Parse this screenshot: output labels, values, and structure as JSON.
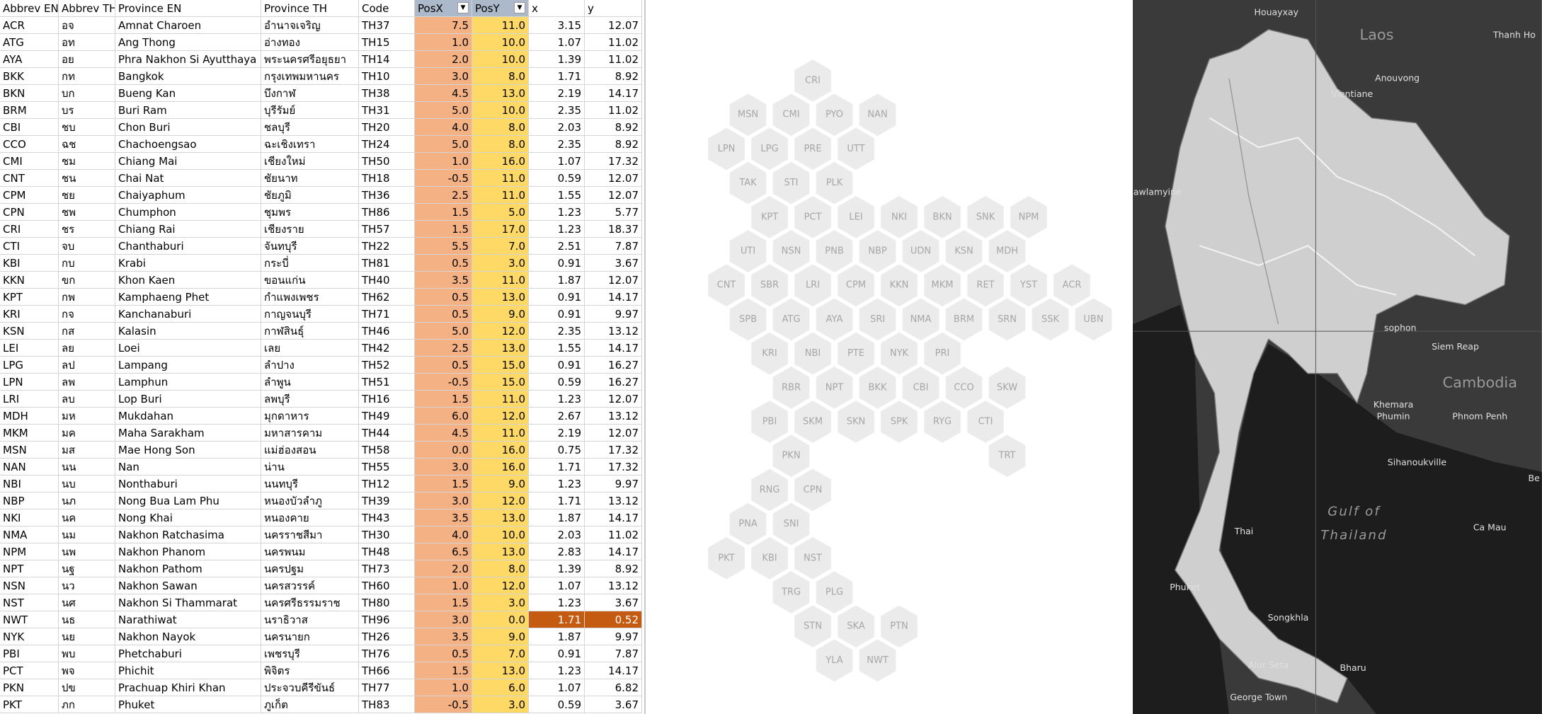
{
  "table": {
    "columns": [
      "Abbrev EN",
      "Abbrev TH",
      "Province EN",
      "Province TH",
      "Code",
      "PosX",
      "PosY",
      "x",
      "y"
    ],
    "rows": [
      [
        "ACR",
        "อจ",
        "Amnat Charoen",
        "อำนาจเจริญ",
        "TH37",
        "7.5",
        "11.0",
        "3.15",
        "12.07"
      ],
      [
        "ATG",
        "อท",
        "Ang Thong",
        "อ่างทอง",
        "TH15",
        "1.0",
        "10.0",
        "1.07",
        "11.02"
      ],
      [
        "AYA",
        "อย",
        "Phra Nakhon Si Ayutthaya",
        "พระนครศรีอยุธยา",
        "TH14",
        "2.0",
        "10.0",
        "1.39",
        "11.02"
      ],
      [
        "BKK",
        "กท",
        "Bangkok",
        "กรุงเทพมหานคร",
        "TH10",
        "3.0",
        "8.0",
        "1.71",
        "8.92"
      ],
      [
        "BKN",
        "บก",
        "Bueng Kan",
        "บึงกาฬ",
        "TH38",
        "4.5",
        "13.0",
        "2.19",
        "14.17"
      ],
      [
        "BRM",
        "บร",
        "Buri Ram",
        "บุรีรัมย์",
        "TH31",
        "5.0",
        "10.0",
        "2.35",
        "11.02"
      ],
      [
        "CBI",
        "ชบ",
        "Chon Buri",
        "ชลบุรี",
        "TH20",
        "4.0",
        "8.0",
        "2.03",
        "8.92"
      ],
      [
        "CCO",
        "ฉช",
        "Chachoengsao",
        "ฉะเชิงเทรา",
        "TH24",
        "5.0",
        "8.0",
        "2.35",
        "8.92"
      ],
      [
        "CMI",
        "ชม",
        "Chiang Mai",
        "เชียงใหม่",
        "TH50",
        "1.0",
        "16.0",
        "1.07",
        "17.32"
      ],
      [
        "CNT",
        "ชน",
        "Chai Nat",
        "ชัยนาท",
        "TH18",
        "-0.5",
        "11.0",
        "0.59",
        "12.07"
      ],
      [
        "CPM",
        "ชย",
        "Chaiyaphum",
        "ชัยภูมิ",
        "TH36",
        "2.5",
        "11.0",
        "1.55",
        "12.07"
      ],
      [
        "CPN",
        "ชพ",
        "Chumphon",
        "ชุมพร",
        "TH86",
        "1.5",
        "5.0",
        "1.23",
        "5.77"
      ],
      [
        "CRI",
        "ชร",
        "Chiang Rai",
        "เชียงราย",
        "TH57",
        "1.5",
        "17.0",
        "1.23",
        "18.37"
      ],
      [
        "CTI",
        "จบ",
        "Chanthaburi",
        "จันทบุรี",
        "TH22",
        "5.5",
        "7.0",
        "2.51",
        "7.87"
      ],
      [
        "KBI",
        "กบ",
        "Krabi",
        "กระบี่",
        "TH81",
        "0.5",
        "3.0",
        "0.91",
        "3.67"
      ],
      [
        "KKN",
        "ขก",
        "Khon Kaen",
        "ขอนแก่น",
        "TH40",
        "3.5",
        "11.0",
        "1.87",
        "12.07"
      ],
      [
        "KPT",
        "กพ",
        "Kamphaeng Phet",
        "กำแพงเพชร",
        "TH62",
        "0.5",
        "13.0",
        "0.91",
        "14.17"
      ],
      [
        "KRI",
        "กจ",
        "Kanchanaburi",
        "กาญจนบุรี",
        "TH71",
        "0.5",
        "9.0",
        "0.91",
        "9.97"
      ],
      [
        "KSN",
        "กส",
        "Kalasin",
        "กาฬสินธุ์",
        "TH46",
        "5.0",
        "12.0",
        "2.35",
        "13.12"
      ],
      [
        "LEI",
        "ลย",
        "Loei",
        "เลย",
        "TH42",
        "2.5",
        "13.0",
        "1.55",
        "14.17"
      ],
      [
        "LPG",
        "ลป",
        "Lampang",
        "ลำปาง",
        "TH52",
        "0.5",
        "15.0",
        "0.91",
        "16.27"
      ],
      [
        "LPN",
        "ลพ",
        "Lamphun",
        "ลำพูน",
        "TH51",
        "-0.5",
        "15.0",
        "0.59",
        "16.27"
      ],
      [
        "LRI",
        "ลบ",
        "Lop Buri",
        "ลพบุรี",
        "TH16",
        "1.5",
        "11.0",
        "1.23",
        "12.07"
      ],
      [
        "MDH",
        "มห",
        "Mukdahan",
        "มุกดาหาร",
        "TH49",
        "6.0",
        "12.0",
        "2.67",
        "13.12"
      ],
      [
        "MKM",
        "มค",
        "Maha Sarakham",
        "มหาสารคาม",
        "TH44",
        "4.5",
        "11.0",
        "2.19",
        "12.07"
      ],
      [
        "MSN",
        "มส",
        "Mae Hong Son",
        "แม่ฮ่องสอน",
        "TH58",
        "0.0",
        "16.0",
        "0.75",
        "17.32"
      ],
      [
        "NAN",
        "นน",
        "Nan",
        "น่าน",
        "TH55",
        "3.0",
        "16.0",
        "1.71",
        "17.32"
      ],
      [
        "NBI",
        "นบ",
        "Nonthaburi",
        "นนทบุรี",
        "TH12",
        "1.5",
        "9.0",
        "1.23",
        "9.97"
      ],
      [
        "NBP",
        "นภ",
        "Nong Bua Lam Phu",
        "หนองบัวลำภู",
        "TH39",
        "3.0",
        "12.0",
        "1.71",
        "13.12"
      ],
      [
        "NKI",
        "นค",
        "Nong Khai",
        "หนองคาย",
        "TH43",
        "3.5",
        "13.0",
        "1.87",
        "14.17"
      ],
      [
        "NMA",
        "นม",
        "Nakhon Ratchasima",
        "นครราชสีมา",
        "TH30",
        "4.0",
        "10.0",
        "2.03",
        "11.02"
      ],
      [
        "NPM",
        "นพ",
        "Nakhon Phanom",
        "นครพนม",
        "TH48",
        "6.5",
        "13.0",
        "2.83",
        "14.17"
      ],
      [
        "NPT",
        "นฐ",
        "Nakhon Pathom",
        "นครปฐม",
        "TH73",
        "2.0",
        "8.0",
        "1.39",
        "8.92"
      ],
      [
        "NSN",
        "นว",
        "Nakhon Sawan",
        "นครสวรรค์",
        "TH60",
        "1.0",
        "12.0",
        "1.07",
        "13.12"
      ],
      [
        "NST",
        "นศ",
        "Nakhon Si Thammarat",
        "นครศรีธรรมราช",
        "TH80",
        "1.5",
        "3.0",
        "1.23",
        "3.67"
      ],
      [
        "NWT",
        "นธ",
        "Narathiwat",
        "นราธิวาส",
        "TH96",
        "3.0",
        "0.0",
        "1.71",
        "0.52"
      ],
      [
        "NYK",
        "นย",
        "Nakhon Nayok",
        "นครนายก",
        "TH26",
        "3.5",
        "9.0",
        "1.87",
        "9.97"
      ],
      [
        "PBI",
        "พบ",
        "Phetchaburi",
        "เพชรบุรี",
        "TH76",
        "0.5",
        "7.0",
        "0.91",
        "7.87"
      ],
      [
        "PCT",
        "พจ",
        "Phichit",
        "พิจิตร",
        "TH66",
        "1.5",
        "13.0",
        "1.23",
        "14.17"
      ],
      [
        "PKN",
        "ปข",
        "Prachuap Khiri Khan",
        "ประจวบคีรีขันธ์",
        "TH77",
        "1.0",
        "6.0",
        "1.07",
        "6.82"
      ],
      [
        "PKT",
        "ภก",
        "Phuket",
        "ภูเก็ต",
        "TH83",
        "-0.5",
        "3.0",
        "0.59",
        "3.67"
      ]
    ]
  },
  "hex_map": {
    "rows": [
      [
        "CRI"
      ],
      [
        "MSN",
        "CMI",
        "PYO",
        "NAN"
      ],
      [
        "LPN",
        "LPG",
        "PRE",
        "UTT"
      ],
      [
        "TAK",
        "STI",
        "PLK"
      ],
      [
        "KPT",
        "PCT",
        "LEI",
        "NKI",
        "BKN",
        "SNK",
        "NPM"
      ],
      [
        "UTI",
        "NSN",
        "PNB",
        "NBP",
        "UDN",
        "KSN",
        "MDH"
      ],
      [
        "CNT",
        "SBR",
        "LRI",
        "CPM",
        "KKN",
        "MKM",
        "RET",
        "YST",
        "ACR"
      ],
      [
        "SPB",
        "ATG",
        "AYA",
        "SRI",
        "NMA",
        "BRM",
        "SRN",
        "SSK",
        "UBN"
      ],
      [
        "KRI",
        "NBI",
        "PTE",
        "NYK",
        "PRI"
      ],
      [
        "RBR",
        "NPT",
        "BKK",
        "CBI",
        "CCO",
        "SKW"
      ],
      [
        "PBI",
        "SKM",
        "SKN",
        "SPK",
        "RYG",
        "CTI"
      ],
      [
        "PKN",
        null,
        null,
        null,
        null,
        "TRT"
      ],
      [
        "RNG",
        "CPN"
      ],
      [
        "PNA",
        "SNI"
      ],
      [
        "PKT",
        "KBI",
        "NST"
      ],
      [
        "TRG",
        "PLG"
      ],
      [
        "STN",
        "SKA",
        "PTN"
      ],
      [
        "YLA",
        "NWT"
      ]
    ]
  },
  "map": {
    "labels": [
      "Houayxay",
      "Laos",
      "Thanh Ho",
      "Anouvong",
      "Vientiane",
      "awlamyine",
      "sophon",
      "Siem Reap",
      "Cambodia",
      "Khemara",
      "Phumin",
      "Phnom Penh",
      "Sihanoukville",
      "Gulf of",
      "Thailand",
      "Ca Mau",
      "Thai",
      "Be",
      "Phuket",
      "Songkhla",
      "Bharu",
      "Alor Seta",
      "George Town"
    ]
  }
}
